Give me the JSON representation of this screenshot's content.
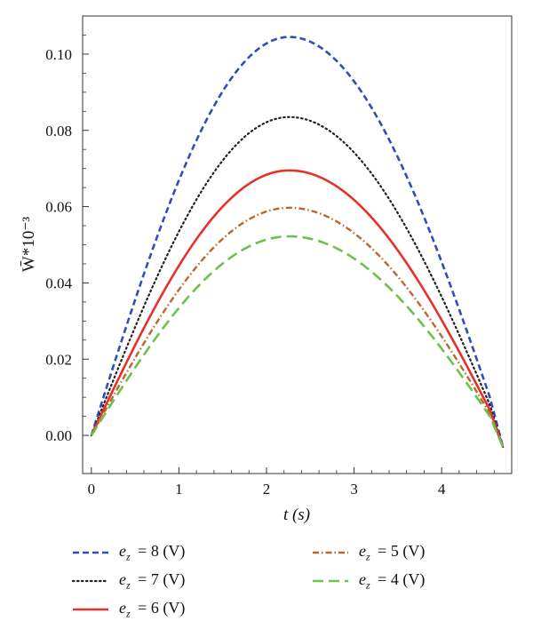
{
  "chart_data": {
    "type": "line",
    "xlabel": "t (s)",
    "ylabel": "W̄*10⁻³",
    "xlim": [
      -0.1,
      4.8
    ],
    "ylim": [
      -0.01,
      0.11
    ],
    "x_ticks": [
      "0",
      "1",
      "2",
      "3",
      "4"
    ],
    "y_ticks": [
      "0.00",
      "0.02",
      "0.04",
      "0.06",
      "0.08",
      "0.10"
    ],
    "x_period_end": 4.7,
    "peak_x": 2.26,
    "end_value": -0.003,
    "grid": false,
    "legend_position": "bottom",
    "series": [
      {
        "name": "e_z = 8 (V)",
        "legend_symbol": "e",
        "legend_sub": "z",
        "legend_value": "= 8 (V)",
        "peak": 0.1045,
        "color": "#2f4fb8",
        "style": "dashed-short"
      },
      {
        "name": "e_z = 7 (V)",
        "legend_symbol": "e",
        "legend_sub": "z",
        "legend_value": "= 7 (V)",
        "peak": 0.0835,
        "color": "#222222",
        "style": "dotted"
      },
      {
        "name": "e_z = 6 (V)",
        "legend_symbol": "e",
        "legend_sub": "z",
        "legend_value": "= 6 (V)",
        "peak": 0.0695,
        "color": "#e8302a",
        "style": "solid"
      },
      {
        "name": "e_z = 5 (V)",
        "legend_symbol": "e",
        "legend_sub": "z",
        "legend_value": "= 5 (V)",
        "peak": 0.0597,
        "color": "#b8682e",
        "style": "dash-dot"
      },
      {
        "name": "e_z = 4 (V)",
        "legend_symbol": "e",
        "legend_sub": "z",
        "legend_value": "= 4 (V)",
        "peak": 0.0522,
        "color": "#6cc24a",
        "style": "dashed-long"
      }
    ]
  }
}
